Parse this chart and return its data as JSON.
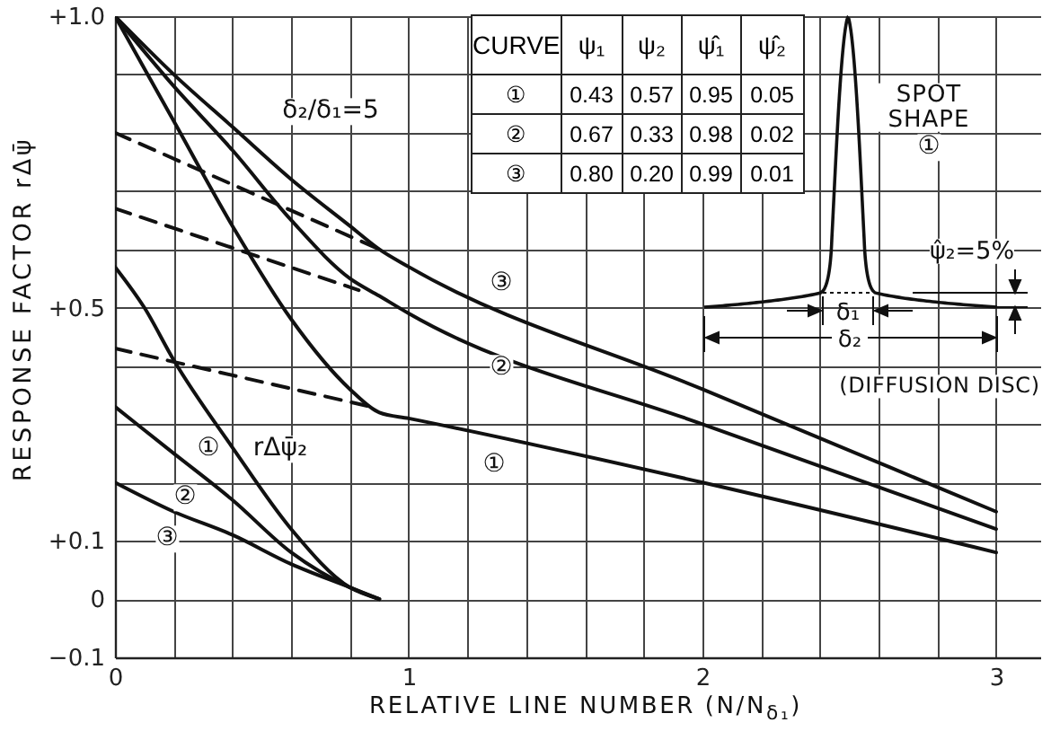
{
  "chart_data": {
    "type": "line",
    "xlabel": "RELATIVE LINE NUMBER (N/N$_{δ₁}$)",
    "ylabel": "RESPONSE FACTOR rΔψ̄",
    "xlim": [
      0,
      3.15
    ],
    "ylim": [
      -0.1,
      1.0
    ],
    "xticks": [
      0,
      {
        "value": 0.2,
        "label": null
      },
      {
        "value": 0.4,
        "label": null
      },
      {
        "value": 0.6,
        "label": null
      },
      {
        "value": 0.8,
        "label": null
      },
      1,
      {
        "value": 1.2,
        "label": null
      },
      {
        "value": 1.4,
        "label": null
      },
      {
        "value": 1.6,
        "label": null
      },
      {
        "value": 1.8,
        "label": null
      },
      2,
      {
        "value": 2.2,
        "label": null
      },
      {
        "value": 2.4,
        "label": null
      },
      {
        "value": 2.6,
        "label": null
      },
      {
        "value": 2.8,
        "label": null
      },
      3
    ],
    "yticks": [
      {
        "value": -0.1,
        "label": "−0.1"
      },
      0,
      {
        "value": 0.1,
        "label": "+0.1"
      },
      {
        "value": 0.2,
        "label": null
      },
      {
        "value": 0.3,
        "label": null
      },
      {
        "value": 0.4,
        "label": null
      },
      {
        "value": 0.5,
        "label": "+0.5"
      },
      {
        "value": 0.6,
        "label": null
      },
      {
        "value": 0.7,
        "label": null
      },
      {
        "value": 0.8,
        "label": null
      },
      {
        "value": 0.9,
        "label": null
      },
      {
        "value": 1.0,
        "label": "+1.0"
      }
    ],
    "grid": true,
    "line_style": "solid",
    "series": [
      {
        "color": "#111111",
        "x": [
          0,
          0.2,
          0.4,
          0.6,
          0.8,
          0.9,
          1.0,
          2.0,
          3.0
        ],
        "values": [
          1.0,
          0.9,
          0.81,
          0.72,
          0.64,
          0.6,
          0.57,
          0.36,
          0.15
        ]
      },
      {
        "color": "#111111",
        "x": [
          0,
          0.2,
          0.4,
          0.6,
          0.8,
          0.9,
          1.0,
          2.0,
          3.0
        ],
        "values": [
          1.0,
          0.88,
          0.77,
          0.65,
          0.55,
          0.52,
          0.49,
          0.3,
          0.12
        ]
      },
      {
        "color": "#111111",
        "x": [
          0,
          0.2,
          0.4,
          0.6,
          0.8,
          0.9,
          1.0,
          2.0,
          3.0
        ],
        "values": [
          1.0,
          0.82,
          0.64,
          0.48,
          0.36,
          0.32,
          0.31,
          0.2,
          0.08
        ]
      },
      {
        "color": "#111111",
        "line_style": "dashed",
        "x": [
          0,
          0.9
        ],
        "values": [
          0.8,
          0.6
        ]
      },
      {
        "color": "#111111",
        "line_style": "dashed",
        "x": [
          0,
          0.83
        ],
        "values": [
          0.67,
          0.53
        ]
      },
      {
        "color": "#111111",
        "line_style": "dashed",
        "x": [
          0,
          0.87
        ],
        "values": [
          0.43,
          0.33
        ]
      },
      {
        "color": "#111111",
        "x": [
          0,
          0.1,
          0.2,
          0.4,
          0.6,
          0.8,
          0.9
        ],
        "values": [
          0.57,
          0.5,
          0.41,
          0.26,
          0.12,
          0.02,
          0
        ]
      },
      {
        "color": "#111111",
        "x": [
          0,
          0.2,
          0.4,
          0.6,
          0.8,
          0.9
        ],
        "values": [
          0.33,
          0.25,
          0.17,
          0.08,
          0.02,
          0
        ]
      },
      {
        "color": "#111111",
        "x": [
          0,
          0.2,
          0.4,
          0.6,
          0.8,
          0.9
        ],
        "values": [
          0.2,
          0.15,
          0.11,
          0.06,
          0.02,
          0
        ]
      }
    ],
    "annotations": [
      "δ₂/δ₁=5",
      "CURVE",
      "ψ₁",
      "ψ₂",
      "ψ̂₁",
      "ψ̂₂",
      "①",
      "0.43",
      "0.57",
      "0.95",
      "0.05",
      "②",
      "0.67",
      "0.33",
      "0.98",
      "0.02",
      "③",
      "0.80",
      "0.20",
      "0.99",
      "0.01",
      "SPOT SHAPE",
      "①",
      "ψ̂₂=5%",
      "δ₁",
      "δ₂",
      "(DIFFUSION DISC)",
      "③",
      "②",
      "①",
      "①",
      "rΔψ̄₂",
      "②",
      "③"
    ]
  }
}
